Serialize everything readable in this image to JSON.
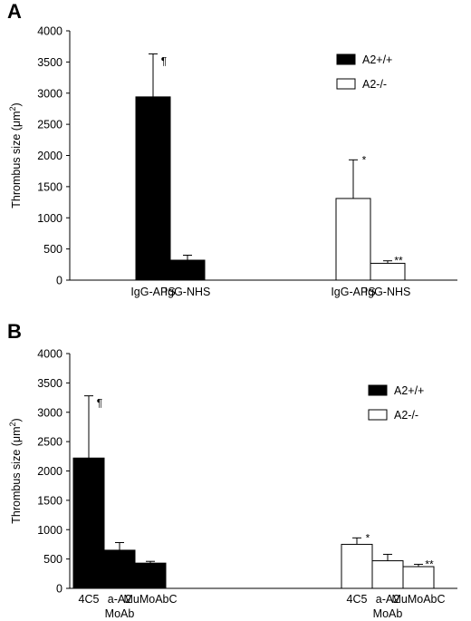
{
  "chart_data": [
    {
      "panel": "A",
      "type": "bar",
      "ylabel": "Thrombus size (μm²)",
      "ylim": [
        0,
        4000
      ],
      "yticks": [
        0,
        500,
        1000,
        1500,
        2000,
        2500,
        3000,
        3500,
        4000
      ],
      "legend": [
        {
          "name": "A2+/+",
          "color": "#000000"
        },
        {
          "name": "A2-/-",
          "color": "#ffffff"
        }
      ],
      "groups": [
        {
          "series": "A2+/+",
          "categories": [
            "IgG-APS",
            "IgG-NHS"
          ],
          "values": [
            2940,
            320
          ],
          "errors": [
            690,
            80
          ],
          "annotations": [
            "¶",
            ""
          ]
        },
        {
          "series": "A2-/-",
          "categories": [
            "IgG-APS",
            "IgG-NHS"
          ],
          "values": [
            1310,
            270
          ],
          "errors": [
            620,
            40
          ],
          "annotations": [
            "*",
            "**"
          ]
        }
      ]
    },
    {
      "panel": "B",
      "type": "bar",
      "ylabel": "Thrombus size (μm²)",
      "ylim": [
        0,
        4000
      ],
      "yticks": [
        0,
        500,
        1000,
        1500,
        2000,
        2500,
        3000,
        3500,
        4000
      ],
      "legend": [
        {
          "name": "A2+/+",
          "color": "#000000"
        },
        {
          "name": "A2-/-",
          "color": "#ffffff"
        }
      ],
      "groups": [
        {
          "series": "A2+/+",
          "categories": [
            "4C5",
            "a-A2",
            "MuMoAbC"
          ],
          "values": [
            2220,
            650,
            430
          ],
          "errors": [
            1060,
            130,
            30
          ],
          "annotations": [
            "¶",
            "",
            ""
          ],
          "group_label": "MoAb"
        },
        {
          "series": "A2-/-",
          "categories": [
            "4C5",
            "a-A2",
            "MuMoAbC"
          ],
          "values": [
            750,
            470,
            370
          ],
          "errors": [
            110,
            110,
            40
          ],
          "annotations": [
            "*",
            "",
            "**"
          ],
          "group_label": "MoAb"
        }
      ]
    }
  ]
}
